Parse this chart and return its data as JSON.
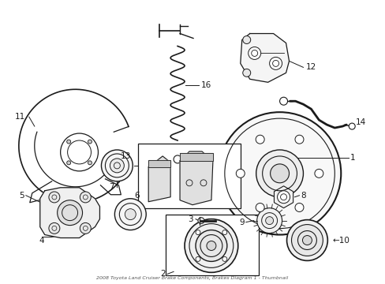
{
  "title": "2008 Toyota Land Cruiser Brake Components, Brakes Diagram 1 - Thumbnail",
  "bg_color": "#ffffff",
  "line_color": "#1a1a1a",
  "label_color": "#111111",
  "fig_width": 4.89,
  "fig_height": 3.6,
  "dpi": 100
}
